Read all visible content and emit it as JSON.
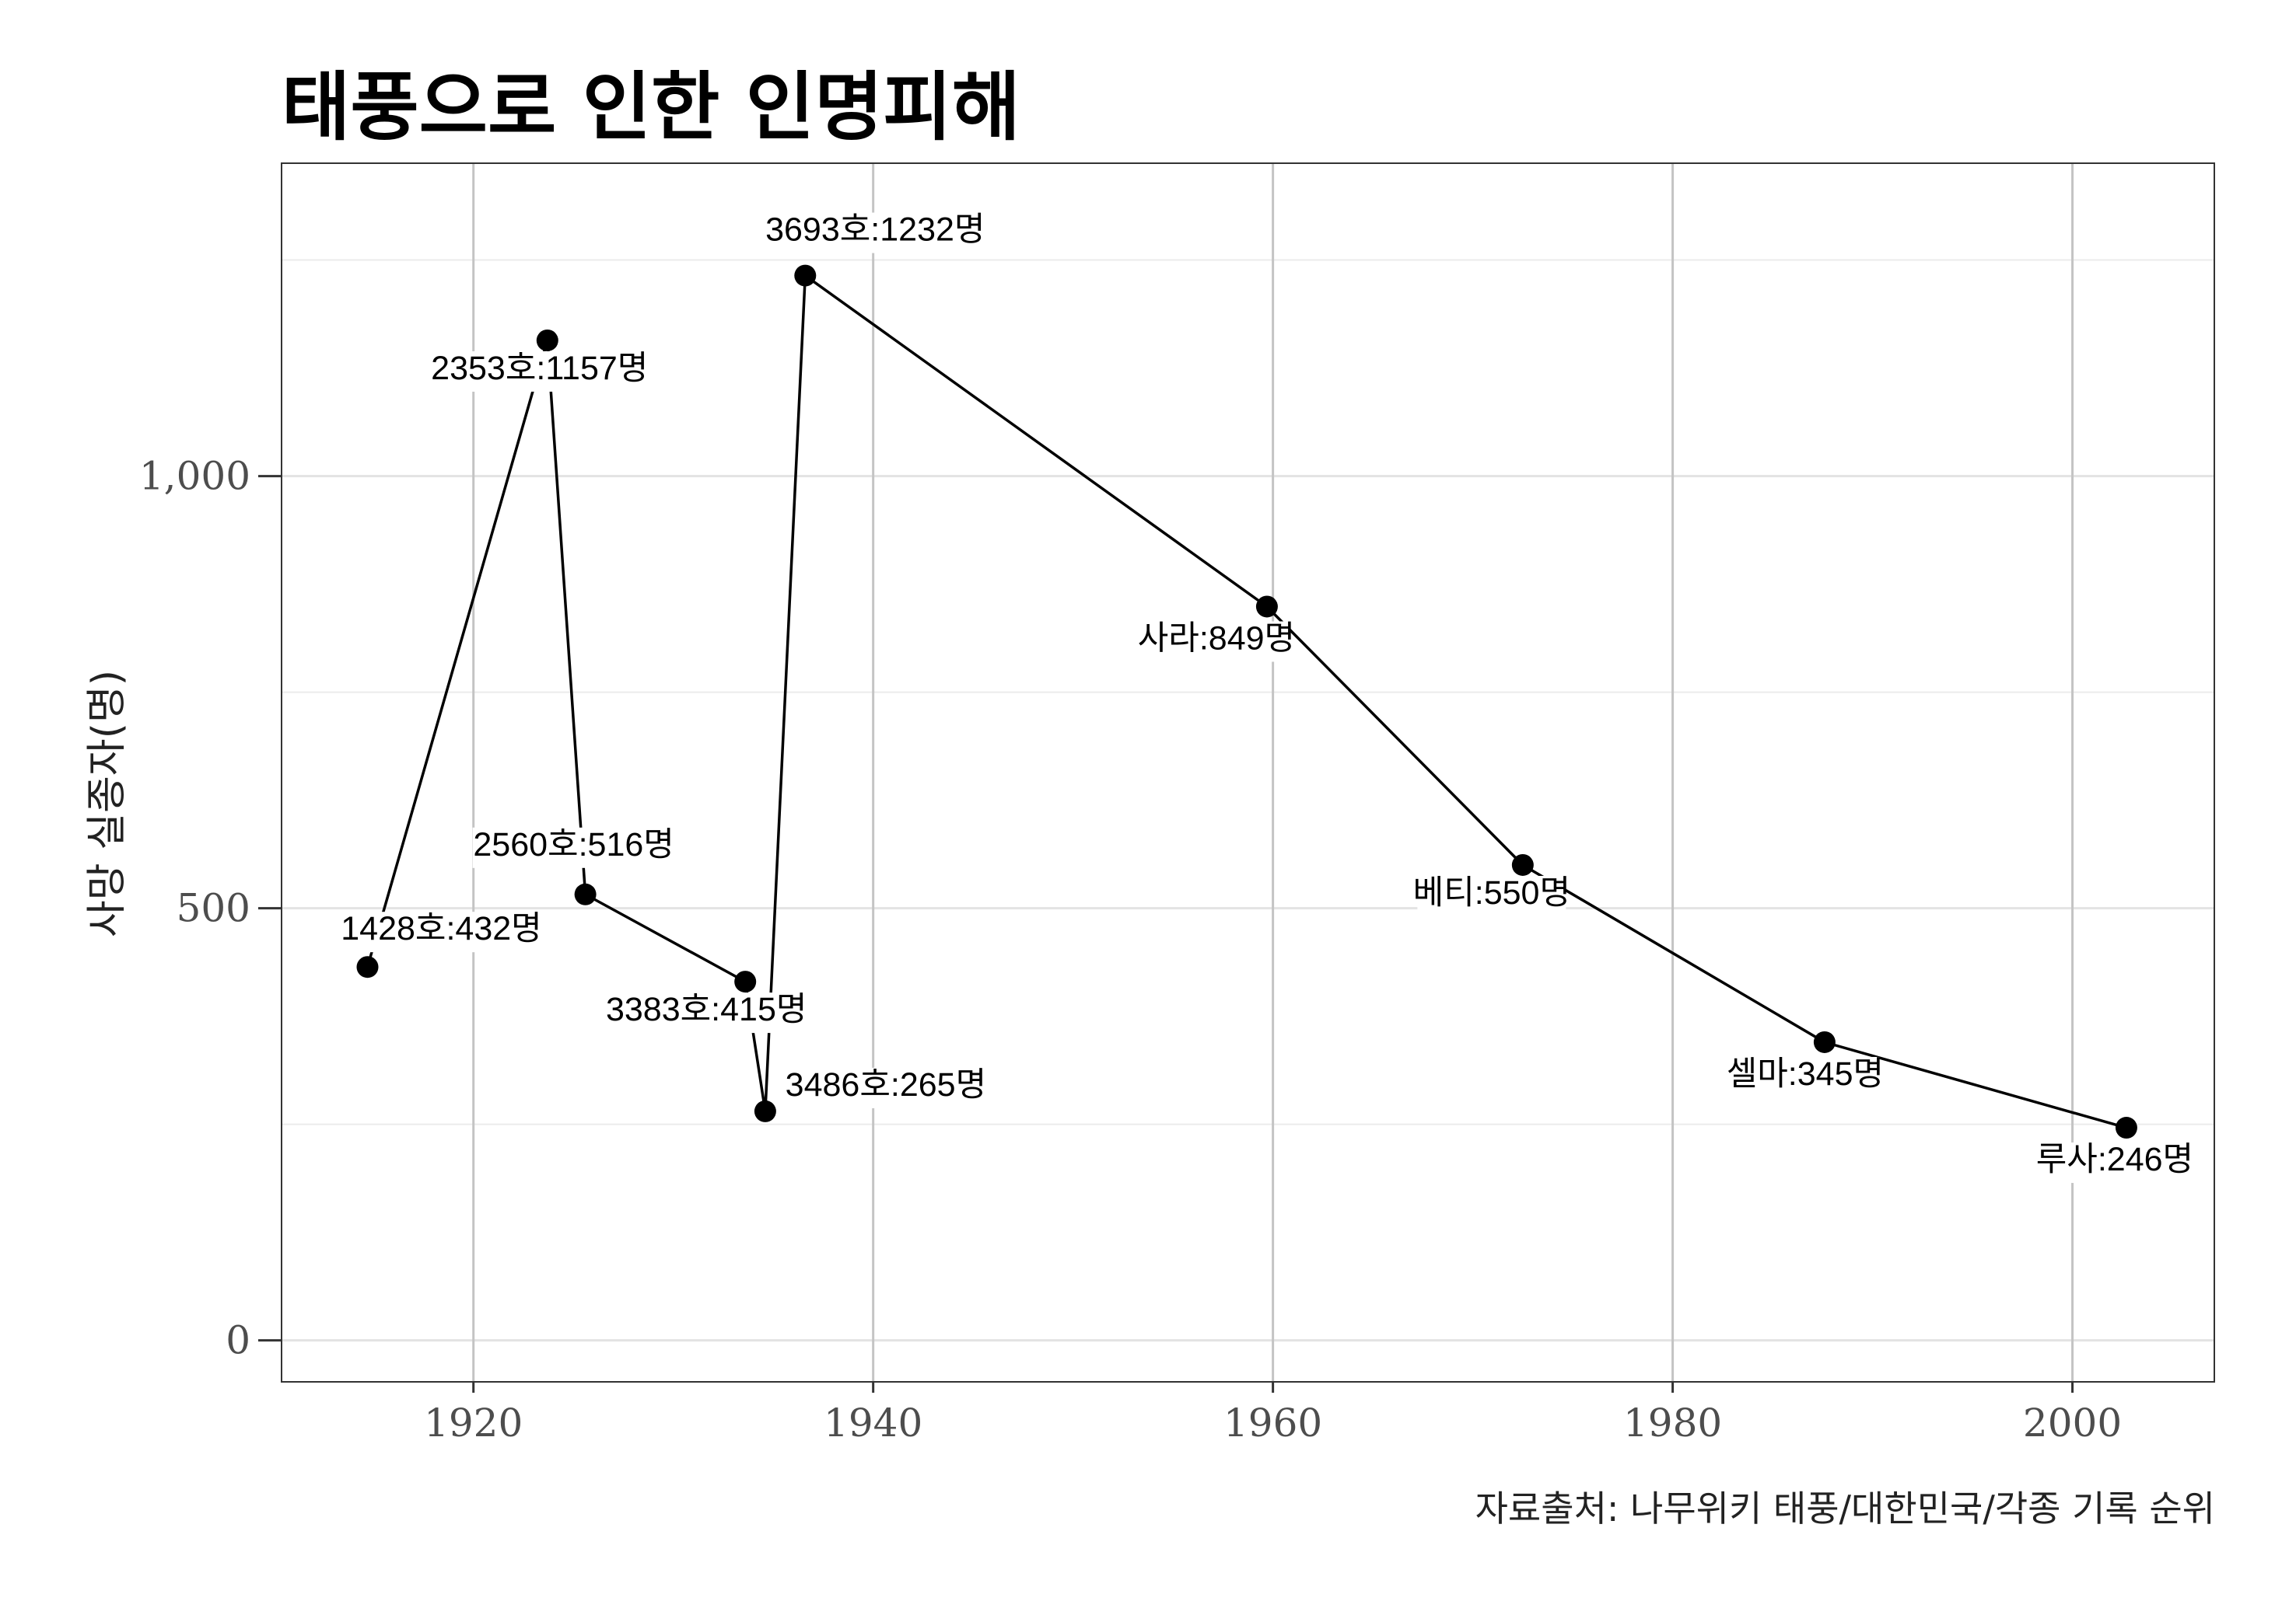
{
  "chart_data": {
    "type": "line",
    "title": "태풍으로 인한 인명피해",
    "xlabel": "",
    "ylabel": "사망 실종자(명)",
    "caption": "자료출처: 나무위키 태풍/대한민국/각종 기록 순위",
    "xlim": [
      1910.4,
      2007.1
    ],
    "ylim": [
      -48,
      1362
    ],
    "x_ticks": [
      1920,
      1940,
      1960,
      1980,
      2000
    ],
    "x_tick_labels": [
      "1920",
      "1940",
      "1960",
      "1980",
      "2000"
    ],
    "y_ticks": [
      0,
      500,
      1000
    ],
    "y_tick_labels": [
      "0",
      "500",
      "1,000"
    ],
    "grid": true,
    "series": [
      {
        "points": [
          {
            "x": 1914.7,
            "y": 432,
            "label": "1428호:432명"
          },
          {
            "x": 1923.7,
            "y": 1157,
            "label": "2353호:1157명"
          },
          {
            "x": 1925.6,
            "y": 516,
            "label": "2560호:516명"
          },
          {
            "x": 1933.6,
            "y": 415,
            "label": "3383호:415명"
          },
          {
            "x": 1934.6,
            "y": 265,
            "label": "3486호:265명"
          },
          {
            "x": 1936.6,
            "y": 1232,
            "label": "3693호:1232명"
          },
          {
            "x": 1959.7,
            "y": 849,
            "label": "사라:849명"
          },
          {
            "x": 1972.5,
            "y": 550,
            "label": "베티:550명"
          },
          {
            "x": 1987.6,
            "y": 345,
            "label": "셀마:345명"
          },
          {
            "x": 2002.7,
            "y": 246,
            "label": "루사:246명"
          }
        ]
      }
    ]
  }
}
